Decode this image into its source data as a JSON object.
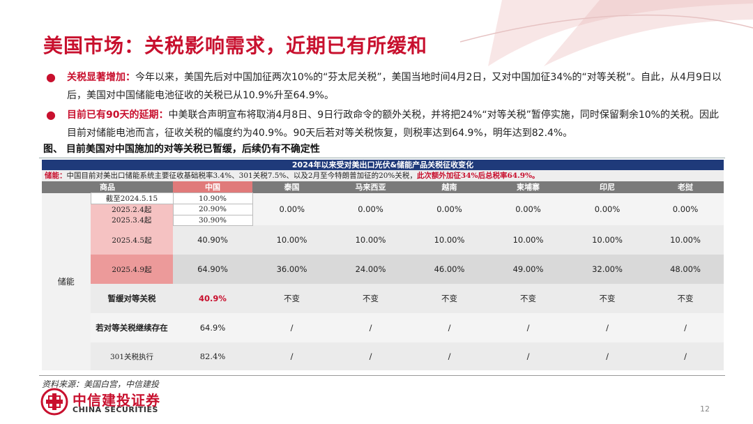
{
  "title": "美国市场：关税影响需求，近期已有所缓和",
  "bullets": [
    {
      "key": "关税显著增加：",
      "text": "今年以来，美国先后对中国加征两次10%的“芬太尼关税”，美国当地时间4月2日，又对中国加征34%的“对等关税”。自此，从4月9日以后，美国对中国储能电池征收的关税已从10.9%升至64.9%。"
    },
    {
      "key": "目前已有90天的延期：",
      "text": "中美联合声明宣布将取消4月8日、9日行政命令的额外关税，并将把24%“对等关税”暂停实施，同时保留剩余10%的关税。因此目前对储能电池而言，征收关税的幅度约为40.9%。90天后若对等关税恢复，则税率达到64.9%，明年达到82.4%。"
    }
  ],
  "figure_caption": "图、 目前美国对中国施加的对等关税已暂缓，后续仍有不确定性",
  "table": {
    "header": "2024年以来受对美出口光伏&储能产品关税征收变化",
    "note_label": "储能：",
    "note_text": "中国目前对美出口储能系统主要征收基础税率3.4%、301关税7.5%、以及2月至今特朗普加征的20%关税，",
    "note_red": "此次额外加征34%后总税率64.9%。",
    "columns": [
      "商品",
      "中国",
      "泰国",
      "马来西亚",
      "越南",
      "柬埔寨",
      "印尼",
      "老挝"
    ],
    "row_label": "储能",
    "early": {
      "dates": [
        "截至2024.5.15",
        "2025.2.4起",
        "2025.3.4起"
      ],
      "china": [
        "10.90%",
        "20.90%",
        "30.90%"
      ],
      "others": [
        "0.00%",
        "0.00%",
        "0.00%",
        "0.00%",
        "0.00%",
        "0.00%"
      ]
    },
    "apr5": {
      "label": "2025.4.5起",
      "china": "40.90%",
      "others": [
        "10.00%",
        "10.00%",
        "10.00%",
        "10.00%",
        "10.00%",
        "10.00%"
      ]
    },
    "apr9": {
      "label": "2025.4.9起",
      "china": "64.90%",
      "others": [
        "36.00%",
        "24.00%",
        "46.00%",
        "49.00%",
        "32.00%",
        "48.00%"
      ]
    },
    "pause": {
      "label": "暂缓对等关税",
      "china": "40.9%",
      "others": [
        "不变",
        "不变",
        "不变",
        "不变",
        "不变",
        "不变"
      ]
    },
    "resume": {
      "label": "若对等关税继续存在",
      "china": "64.9%",
      "others": [
        "/",
        "/",
        "/",
        "/",
        "/",
        "/"
      ]
    },
    "s301": {
      "label": "301关税执行",
      "china": "82.4%",
      "others": [
        "/",
        "/",
        "/",
        "/",
        "/",
        "/"
      ]
    }
  },
  "source": "资料来源：美国白宫，中信建投",
  "logo": {
    "cn": "中信建投证券",
    "en": "CHINA SECURITIES",
    "icon": "citic-logo-icon"
  },
  "page_number": "12",
  "colors": {
    "accent": "#c8102e",
    "table_header": "#1f3a7a"
  }
}
